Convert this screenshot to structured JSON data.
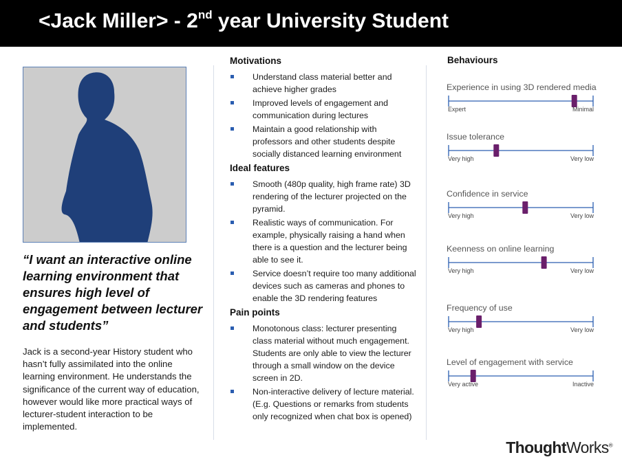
{
  "header": {
    "title_pre": "<Jack Miller> - 2",
    "title_sup": "nd",
    "title_post": " year University Student"
  },
  "persona": {
    "quote": "“I want an interactive online learning environment that ensures high level of engagement between lecturer and students”",
    "bio": "Jack is a second-year History student who hasn’t fully assimilated into the online learning environment. He understands the significance of the current way of education, however would like more practical ways of lecturer-student interaction to be implemented."
  },
  "motivations": {
    "heading": "Motivations",
    "items": [
      "Understand class material better and achieve higher grades",
      "Improved levels of engagement and communication during lectures",
      "Maintain a good relationship with professors and other students despite socially distanced learning environment"
    ]
  },
  "ideal_features": {
    "heading": "Ideal features",
    "items": [
      "Smooth (480p quality, high frame rate) 3D rendering of the lecturer projected on the pyramid.",
      "Realistic ways of communication. For example, physically raising a hand when there is a question and the lecturer being able to see it.",
      "Service doesn’t require too many additional devices such as cameras and phones to enable the 3D rendering features"
    ]
  },
  "pain_points": {
    "heading": "Pain points",
    "items": [
      "Monotonous class: lecturer presenting class material without much engagement. Students are only able to view the lecturer through a small window on the device screen in 2D.",
      "Non-interactive delivery of lecture material. (E.g. Questions or remarks from students only recognized when chat box is opened)"
    ]
  },
  "behaviours": {
    "heading": "Behaviours",
    "scales": [
      {
        "label": "Experience in using 3D rendered media",
        "low": "Expert",
        "high": "Minimal",
        "value": 0.87
      },
      {
        "label": "Issue tolerance",
        "low": "Very high",
        "high": "Very low",
        "value": 0.33
      },
      {
        "label": "Confidence in service",
        "low": "Very high",
        "high": "Very low",
        "value": 0.53
      },
      {
        "label": "Keenness on online learning",
        "low": "Very high",
        "high": "Very low",
        "value": 0.66
      },
      {
        "label": "Frequency of use",
        "low": "Very high",
        "high": "Very low",
        "value": 0.21
      },
      {
        "label": "Level of engagement with service",
        "low": "Very active",
        "high": "Inactive",
        "value": 0.17
      }
    ]
  },
  "colors": {
    "accent": "#2a5db0",
    "marker": "#6a1f6b",
    "header_bg": "#000000"
  },
  "logo": {
    "bold": "Thought",
    "regular": "Works",
    "mark": "®"
  }
}
